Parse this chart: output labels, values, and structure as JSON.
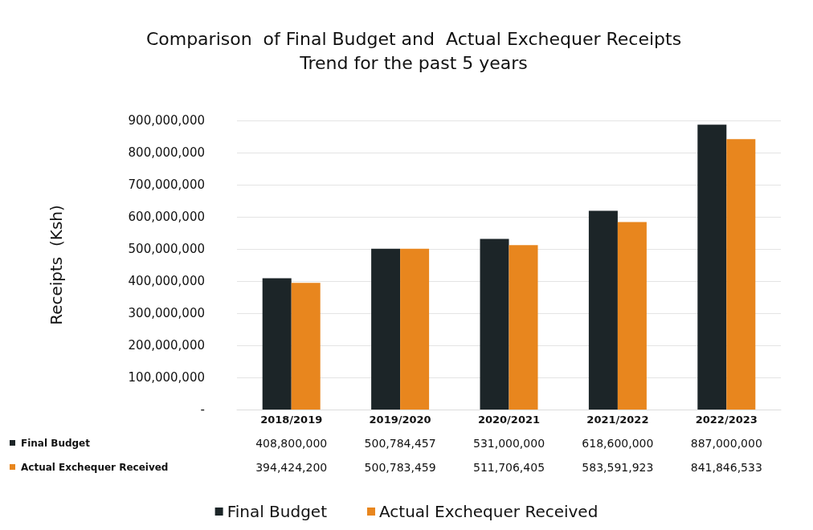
{
  "chart_data": {
    "type": "bar",
    "title": "Comparison  of Final Budget and  Actual Exchequer Receipts\nTrend for the past 5 years",
    "ylabel": "Receipts  (Ksh)",
    "categories": [
      "2018/2019",
      "2019/2020",
      "2020/2021",
      "2021/2022",
      "2022/2023"
    ],
    "series": [
      {
        "name": "Final Budget",
        "color": "#1c2528",
        "values": [
          408800000,
          500784457,
          531000000,
          618600000,
          887000000
        ],
        "value_labels": [
          "408,800,000",
          "500,784,457",
          "531,000,000",
          "618,600,000",
          "887,000,000"
        ]
      },
      {
        "name": "Actual Exchequer Received",
        "color": "#e8861e",
        "values": [
          394424200,
          500783459,
          511706405,
          583591923,
          841846533
        ],
        "value_labels": [
          "394,424,200",
          "500,783,459",
          "511,706,405",
          "583,591,923",
          "841,846,533"
        ]
      }
    ],
    "ylim": [
      0,
      900000000
    ],
    "yticks": [
      {
        "value": 0,
        "label": "-"
      },
      {
        "value": 100000000,
        "label": "100,000,000"
      },
      {
        "value": 200000000,
        "label": "200,000,000"
      },
      {
        "value": 300000000,
        "label": "300,000,000"
      },
      {
        "value": 400000000,
        "label": "400,000,000"
      },
      {
        "value": 500000000,
        "label": "500,000,000"
      },
      {
        "value": 600000000,
        "label": "600,000,000"
      },
      {
        "value": 700000000,
        "label": "700,000,000"
      },
      {
        "value": 800000000,
        "label": "800,000,000"
      },
      {
        "value": 900000000,
        "label": "900,000,000"
      }
    ],
    "grid": "y",
    "legend": "bottom"
  }
}
